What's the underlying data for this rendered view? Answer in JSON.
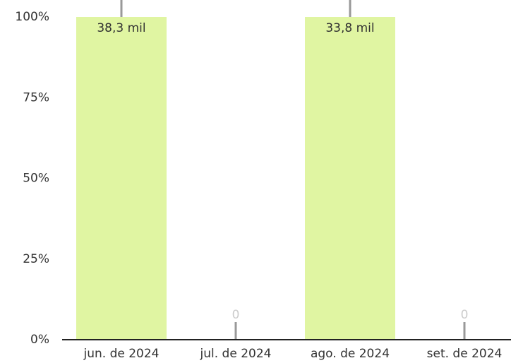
{
  "chart_data": {
    "type": "bar",
    "stacked": true,
    "categories": [
      "jun. de 2024",
      "jul. de 2024",
      "ago. de 2024",
      "set. de 2024"
    ],
    "series": [
      {
        "color": "#e0f5a2",
        "values": [
          100,
          0,
          100,
          0
        ],
        "value_labels": [
          "38,3 mil",
          null,
          "33,8 mil",
          null
        ]
      },
      {
        "color": "#999999",
        "values": [
          0,
          0,
          0,
          0
        ]
      }
    ],
    "ylim": [
      0,
      100
    ],
    "yticks": [
      {
        "value": 0,
        "label": "0%"
      },
      {
        "value": 25,
        "label": "25%"
      },
      {
        "value": 50,
        "label": "50%"
      },
      {
        "value": 75,
        "label": "75%"
      },
      {
        "value": 100,
        "label": "100%"
      }
    ]
  }
}
